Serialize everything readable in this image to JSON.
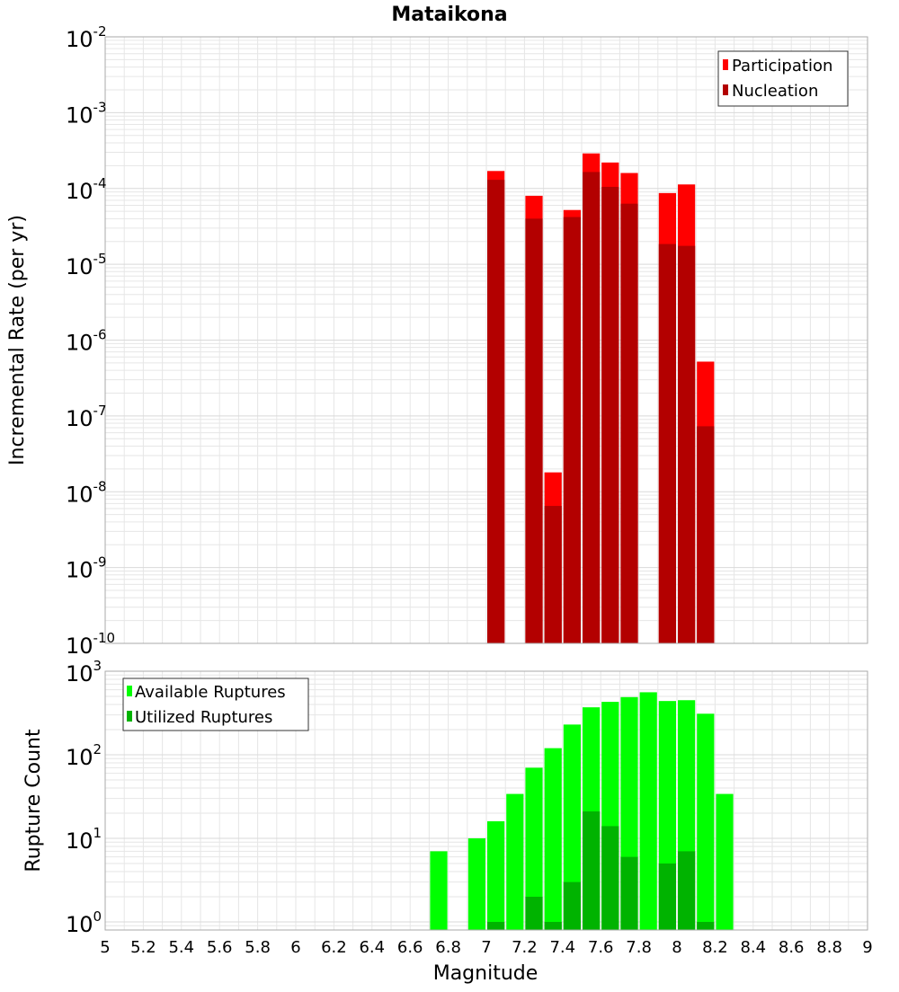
{
  "title": "Mataikona",
  "x_label": "Magnitude",
  "x_ticks": [
    "5",
    "5.2",
    "5.4",
    "5.6",
    "5.8",
    "6",
    "6.2",
    "6.4",
    "6.6",
    "6.8",
    "7",
    "7.2",
    "7.4",
    "7.6",
    "7.8",
    "8",
    "8.2",
    "8.4",
    "8.6",
    "8.8",
    "9"
  ],
  "colors": {
    "participation": "#ff0000",
    "nucleation": "#b30000",
    "available": "#00ff00",
    "utilized": "#00b300",
    "grid": "#e6e6e6",
    "border": "#aaaaaa"
  },
  "chart_data": [
    {
      "type": "bar",
      "panel": "top",
      "ylabel": "Incremental Rate (per yr)",
      "yscale": "log",
      "xlim": [
        5,
        9
      ],
      "ylim": [
        1e-10,
        0.01
      ],
      "y_ticks": [
        {
          "value": 1e-10,
          "base": "10",
          "exp": "-10"
        },
        {
          "value": 1e-09,
          "base": "10",
          "exp": "-9"
        },
        {
          "value": 1e-08,
          "base": "10",
          "exp": "-8"
        },
        {
          "value": 1e-07,
          "base": "10",
          "exp": "-7"
        },
        {
          "value": 1e-06,
          "base": "10",
          "exp": "-6"
        },
        {
          "value": 1e-05,
          "base": "10",
          "exp": "-5"
        },
        {
          "value": 0.0001,
          "base": "10",
          "exp": "-4"
        },
        {
          "value": 0.001,
          "base": "10",
          "exp": "-3"
        },
        {
          "value": 0.01,
          "base": "10",
          "exp": "-2"
        }
      ],
      "legend_position": "top-right",
      "series": [
        {
          "name": "Participation",
          "color_key": "participation",
          "points": [
            [
              7.05,
              0.00017
            ],
            [
              7.25,
              8e-05
            ],
            [
              7.35,
              1.8e-08
            ],
            [
              7.45,
              5.2e-05
            ],
            [
              7.55,
              0.00029
            ],
            [
              7.65,
              0.00022
            ],
            [
              7.75,
              0.00016
            ],
            [
              7.95,
              8.7e-05
            ],
            [
              8.05,
              0.000113
            ],
            [
              8.15,
              5.2e-07
            ]
          ]
        },
        {
          "name": "Nucleation",
          "color_key": "nucleation",
          "points": [
            [
              7.05,
              0.00013
            ],
            [
              7.25,
              4e-05
            ],
            [
              7.35,
              6.5e-09
            ],
            [
              7.45,
              4.2e-05
            ],
            [
              7.55,
              0.000165
            ],
            [
              7.65,
              0.000105
            ],
            [
              7.75,
              6.3e-05
            ],
            [
              7.95,
              1.85e-05
            ],
            [
              8.05,
              1.75e-05
            ],
            [
              8.15,
              7.3e-08
            ]
          ]
        }
      ]
    },
    {
      "type": "bar",
      "panel": "bottom",
      "ylabel": "Rupture Count",
      "yscale": "log",
      "xlim": [
        5,
        9
      ],
      "ylim": [
        0.8,
        1000
      ],
      "y_ticks": [
        {
          "value": 1,
          "base": "10",
          "exp": "0"
        },
        {
          "value": 10,
          "base": "10",
          "exp": "1"
        },
        {
          "value": 100,
          "base": "10",
          "exp": "2"
        },
        {
          "value": 1000,
          "base": "10",
          "exp": "3"
        }
      ],
      "legend_position": "top-left",
      "series": [
        {
          "name": "Available Ruptures",
          "color_key": "available",
          "points": [
            [
              6.75,
              7
            ],
            [
              6.95,
              10
            ],
            [
              7.05,
              16
            ],
            [
              7.15,
              34
            ],
            [
              7.25,
              70
            ],
            [
              7.35,
              120
            ],
            [
              7.45,
              230
            ],
            [
              7.55,
              370
            ],
            [
              7.65,
              430
            ],
            [
              7.75,
              490
            ],
            [
              7.85,
              560
            ],
            [
              7.95,
              440
            ],
            [
              8.05,
              450
            ],
            [
              8.15,
              310
            ],
            [
              8.25,
              34
            ]
          ]
        },
        {
          "name": "Utilized Ruptures",
          "color_key": "utilized",
          "points": [
            [
              7.05,
              1
            ],
            [
              7.25,
              2
            ],
            [
              7.35,
              1
            ],
            [
              7.45,
              3
            ],
            [
              7.55,
              21
            ],
            [
              7.65,
              14
            ],
            [
              7.75,
              6
            ],
            [
              7.95,
              5
            ],
            [
              8.05,
              7
            ],
            [
              8.15,
              1
            ]
          ]
        }
      ]
    }
  ]
}
